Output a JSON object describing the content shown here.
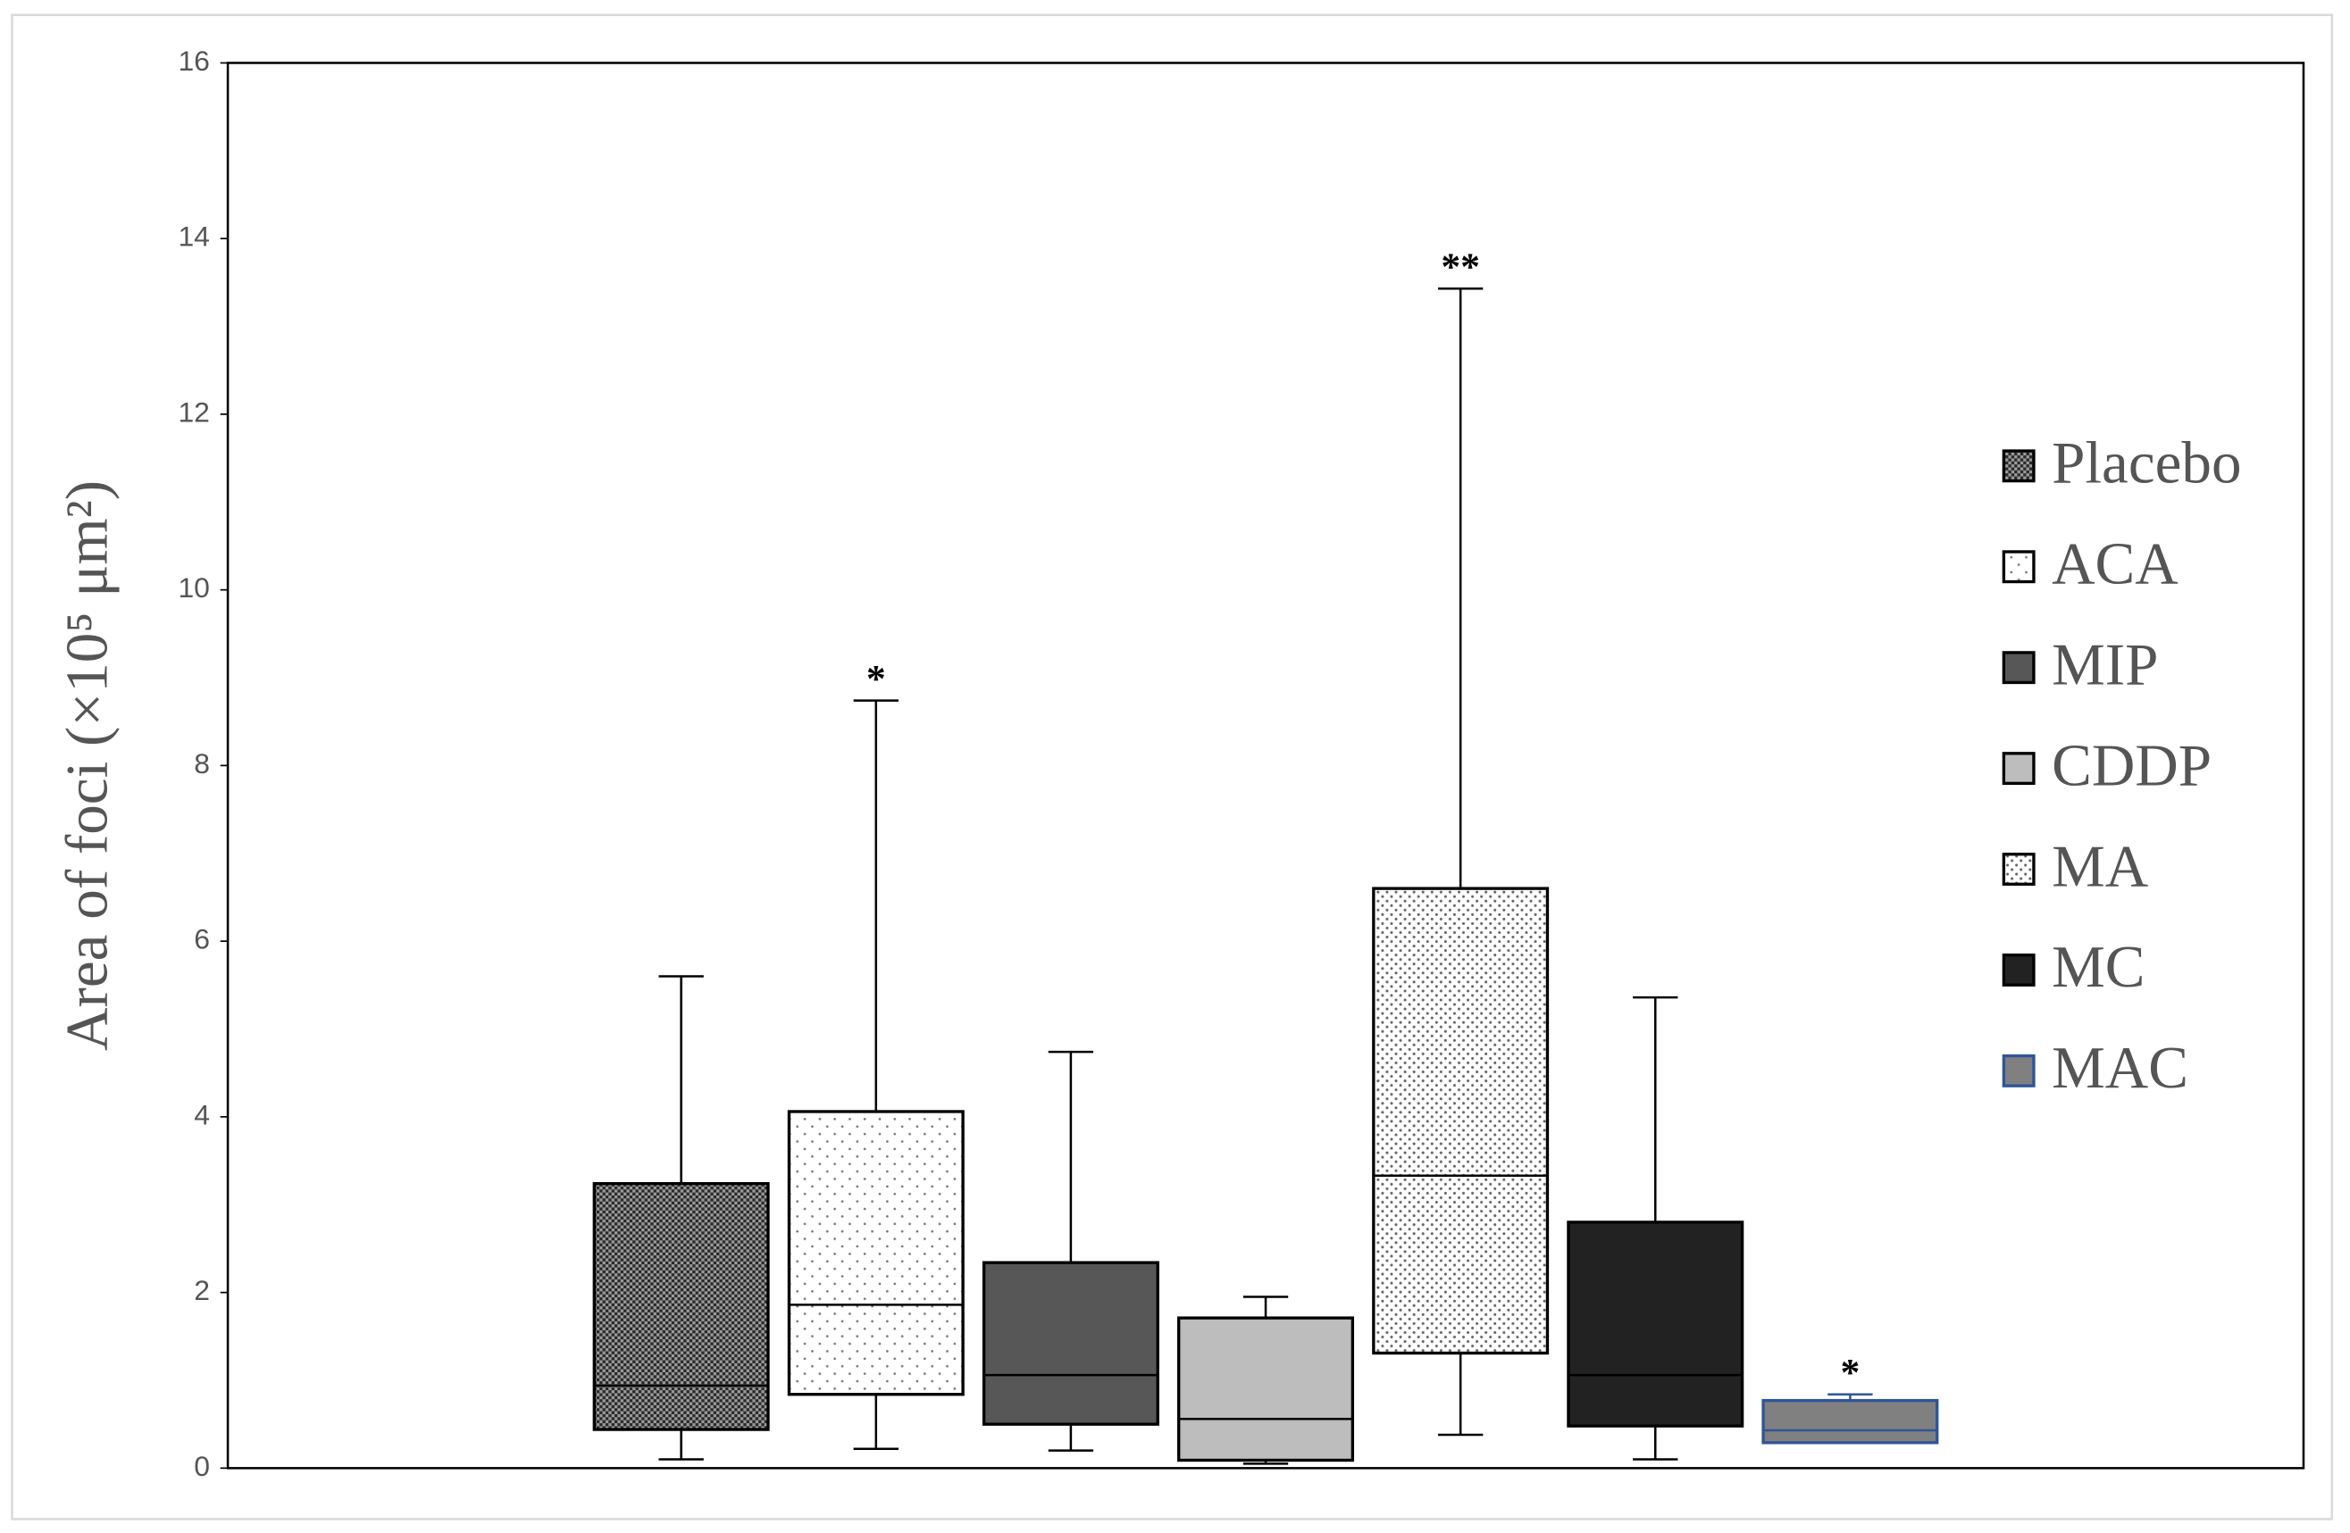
{
  "chart_data": {
    "type": "box",
    "ylabel": "Area of foci (×10⁵ μm²)",
    "ylim": [
      0,
      16
    ],
    "yticks": [
      0,
      2,
      4,
      6,
      8,
      10,
      12,
      14,
      16
    ],
    "legend": "right",
    "series": [
      {
        "name": "Placebo",
        "color": "#3a3a3a",
        "pattern": "crosshatch",
        "edge_color": "#000000",
        "min": 0.1,
        "q1": 0.44,
        "median": 0.94,
        "q3": 3.24,
        "max": 5.6
      },
      {
        "name": "ACA",
        "color": "#ffffff",
        "pattern": "sparse-dots",
        "edge_color": "#000000",
        "min": 0.22,
        "q1": 0.84,
        "median": 1.86,
        "q3": 4.06,
        "max": 8.74,
        "annotation": "*"
      },
      {
        "name": "MIP",
        "color": "#575757",
        "pattern": null,
        "edge_color": "#000000",
        "min": 0.2,
        "q1": 0.5,
        "median": 1.06,
        "q3": 2.34,
        "max": 4.74
      },
      {
        "name": "CDDP",
        "color": "#bdbdbd",
        "pattern": null,
        "edge_color": "#000000",
        "min": 0.05,
        "q1": 0.09,
        "median": 0.56,
        "q3": 1.71,
        "max": 1.95
      },
      {
        "name": "MA",
        "color": "#ffffff",
        "pattern": "dense-dots",
        "edge_color": "#000000",
        "min": 0.38,
        "q1": 1.31,
        "median": 3.33,
        "q3": 6.6,
        "max": 13.43,
        "annotation": "**"
      },
      {
        "name": "MC",
        "color": "#222222",
        "pattern": null,
        "edge_color": "#000000",
        "min": 0.1,
        "q1": 0.48,
        "median": 1.06,
        "q3": 2.8,
        "max": 5.36
      },
      {
        "name": "MAC",
        "color": "#808080",
        "pattern": null,
        "edge_color": "#2f5597",
        "min": 0.29,
        "q1": 0.29,
        "median": 0.43,
        "q3": 0.77,
        "max": 0.84,
        "annotation": "*"
      }
    ]
  }
}
